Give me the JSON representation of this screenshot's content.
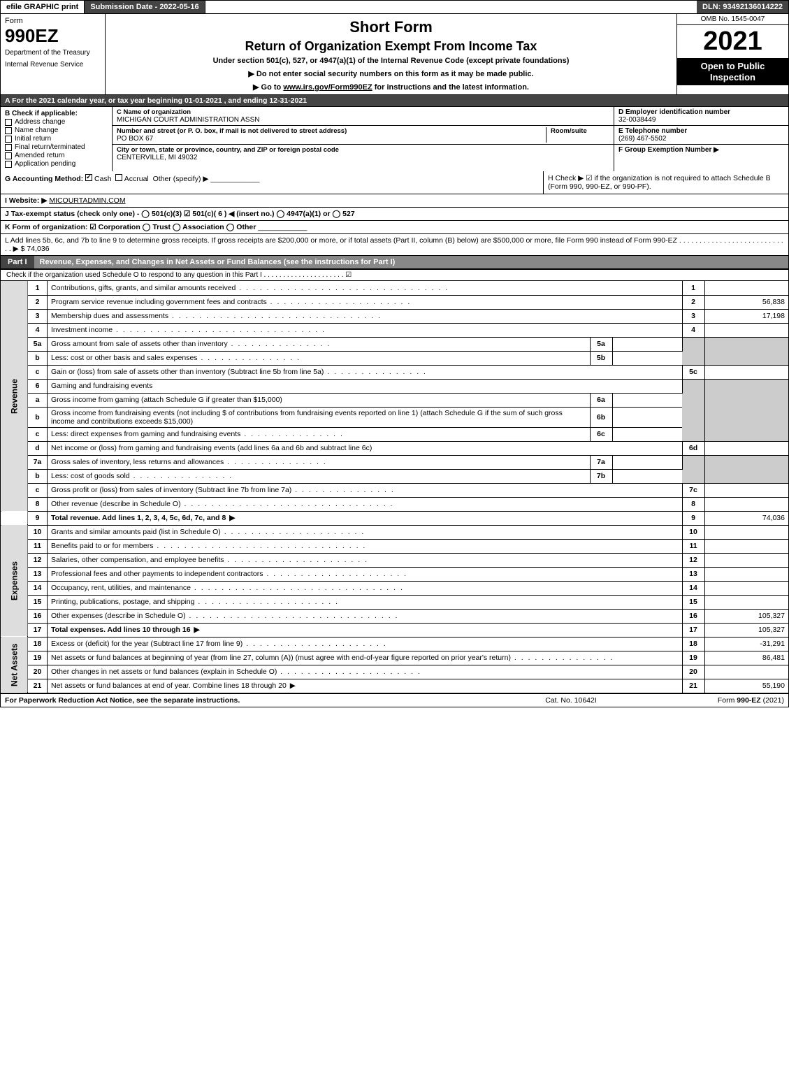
{
  "topbar": {
    "efile": "efile GRAPHIC print",
    "submission": "Submission Date - 2022-05-16",
    "dln": "DLN: 93492136014222"
  },
  "header": {
    "form_label": "Form",
    "form_number": "990EZ",
    "dept1": "Department of the Treasury",
    "dept2": "Internal Revenue Service",
    "title1": "Short Form",
    "title2": "Return of Organization Exempt From Income Tax",
    "title3": "Under section 501(c), 527, or 4947(a)(1) of the Internal Revenue Code (except private foundations)",
    "arrow1": "▶ Do not enter social security numbers on this form as it may be made public.",
    "arrow2_pre": "▶ Go to ",
    "arrow2_link": "www.irs.gov/Form990EZ",
    "arrow2_post": " for instructions and the latest information.",
    "omb": "OMB No. 1545-0047",
    "year": "2021",
    "open": "Open to Public Inspection"
  },
  "lineA": "A  For the 2021 calendar year, or tax year beginning 01-01-2021 , and ending 12-31-2021",
  "sectionB": {
    "b_label": "B",
    "check_if": "Check if applicable:",
    "addr_change": "Address change",
    "name_change": "Name change",
    "initial": "Initial return",
    "final": "Final return/terminated",
    "amended": "Amended return",
    "app_pending": "Application pending",
    "c_label": "C Name of organization",
    "org_name": "MICHIGAN COURT ADMINISTRATION ASSN",
    "street_label": "Number and street (or P. O. box, if mail is not delivered to street address)",
    "room_label": "Room/suite",
    "street": "PO BOX 67",
    "city_label": "City or town, state or province, country, and ZIP or foreign postal code",
    "city": "CENTERVILLE, MI  49032",
    "d_label": "D Employer identification number",
    "ein": "32-0038449",
    "e_label": "E Telephone number",
    "phone": "(269) 467-5502",
    "f_label": "F Group Exemption Number ▶"
  },
  "sectionG": {
    "g_label": "G Accounting Method:",
    "cash": "Cash",
    "accrual": "Accrual",
    "other": "Other (specify) ▶",
    "h_text": "H  Check ▶ ☑ if the organization is not required to attach Schedule B (Form 990, 990-EZ, or 990-PF).",
    "i_label": "I Website: ▶",
    "website": "MICOURTADMIN.COM",
    "j_label": "J Tax-exempt status (check only one) -  ◯ 501(c)(3)  ☑ 501(c)( 6 ) ◀ (insert no.)  ◯ 4947(a)(1) or  ◯ 527",
    "k_label": "K Form of organization:  ☑ Corporation   ◯ Trust   ◯ Association   ◯ Other",
    "l_label": "L Add lines 5b, 6c, and 7b to line 9 to determine gross receipts. If gross receipts are $200,000 or more, or if total assets (Part II, column (B) below) are $500,000 or more, file Form 990 instead of Form 990-EZ  . . . . . . . . . . . . . . . . . . . . . . . . . . . . ▶ $ 74,036"
  },
  "part1": {
    "tag": "Part I",
    "title": "Revenue, Expenses, and Changes in Net Assets or Fund Balances (see the instructions for Part I)",
    "note": "Check if the organization used Schedule O to respond to any question in this Part I . . . . . . . . . . . . . . . . . . . . . ☑"
  },
  "lines": {
    "side_rev": "Revenue",
    "side_exp": "Expenses",
    "side_net": "Net Assets",
    "l1_n": "1",
    "l1": "Contributions, gifts, grants, and similar amounts received",
    "l1_box": "1",
    "l1_amt": "",
    "l2_n": "2",
    "l2": "Program service revenue including government fees and contracts",
    "l2_box": "2",
    "l2_amt": "56,838",
    "l3_n": "3",
    "l3": "Membership dues and assessments",
    "l3_box": "3",
    "l3_amt": "17,198",
    "l4_n": "4",
    "l4": "Investment income",
    "l4_box": "4",
    "l4_amt": "",
    "l5a_n": "5a",
    "l5a": "Gross amount from sale of assets other than inventory",
    "l5a_box": "5a",
    "l5b_n": "b",
    "l5b": "Less: cost or other basis and sales expenses",
    "l5b_box": "5b",
    "l5c_n": "c",
    "l5c": "Gain or (loss) from sale of assets other than inventory (Subtract line 5b from line 5a)",
    "l5c_box": "5c",
    "l6_n": "6",
    "l6": "Gaming and fundraising events",
    "l6a_n": "a",
    "l6a": "Gross income from gaming (attach Schedule G if greater than $15,000)",
    "l6a_box": "6a",
    "l6b_n": "b",
    "l6b": "Gross income from fundraising events (not including $                    of contributions from fundraising events reported on line 1) (attach Schedule G if the sum of such gross income and contributions exceeds $15,000)",
    "l6b_box": "6b",
    "l6c_n": "c",
    "l6c": "Less: direct expenses from gaming and fundraising events",
    "l6c_box": "6c",
    "l6d_n": "d",
    "l6d": "Net income or (loss) from gaming and fundraising events (add lines 6a and 6b and subtract line 6c)",
    "l6d_box": "6d",
    "l7a_n": "7a",
    "l7a": "Gross sales of inventory, less returns and allowances",
    "l7a_box": "7a",
    "l7b_n": "b",
    "l7b": "Less: cost of goods sold",
    "l7b_box": "7b",
    "l7c_n": "c",
    "l7c": "Gross profit or (loss) from sales of inventory (Subtract line 7b from line 7a)",
    "l7c_box": "7c",
    "l8_n": "8",
    "l8": "Other revenue (describe in Schedule O)",
    "l8_box": "8",
    "l9_n": "9",
    "l9": "Total revenue. Add lines 1, 2, 3, 4, 5c, 6d, 7c, and 8",
    "l9_box": "9",
    "l9_amt": "74,036",
    "l10_n": "10",
    "l10": "Grants and similar amounts paid (list in Schedule O)",
    "l10_box": "10",
    "l11_n": "11",
    "l11": "Benefits paid to or for members",
    "l11_box": "11",
    "l12_n": "12",
    "l12": "Salaries, other compensation, and employee benefits",
    "l12_box": "12",
    "l13_n": "13",
    "l13": "Professional fees and other payments to independent contractors",
    "l13_box": "13",
    "l14_n": "14",
    "l14": "Occupancy, rent, utilities, and maintenance",
    "l14_box": "14",
    "l15_n": "15",
    "l15": "Printing, publications, postage, and shipping",
    "l15_box": "15",
    "l16_n": "16",
    "l16": "Other expenses (describe in Schedule O)",
    "l16_box": "16",
    "l16_amt": "105,327",
    "l17_n": "17",
    "l17": "Total expenses. Add lines 10 through 16",
    "l17_box": "17",
    "l17_amt": "105,327",
    "l18_n": "18",
    "l18": "Excess or (deficit) for the year (Subtract line 17 from line 9)",
    "l18_box": "18",
    "l18_amt": "-31,291",
    "l19_n": "19",
    "l19": "Net assets or fund balances at beginning of year (from line 27, column (A)) (must agree with end-of-year figure reported on prior year's return)",
    "l19_box": "19",
    "l19_amt": "86,481",
    "l20_n": "20",
    "l20": "Other changes in net assets or fund balances (explain in Schedule O)",
    "l20_box": "20",
    "l21_n": "21",
    "l21": "Net assets or fund balances at end of year. Combine lines 18 through 20",
    "l21_box": "21",
    "l21_amt": "55,190"
  },
  "footer": {
    "left": "For Paperwork Reduction Act Notice, see the separate instructions.",
    "mid": "Cat. No. 10642I",
    "right_pre": "Form ",
    "right_bold": "990-EZ",
    "right_post": " (2021)"
  },
  "colors": {
    "dark": "#444444",
    "mid": "#888888",
    "grey": "#cccccc",
    "black": "#000000"
  }
}
